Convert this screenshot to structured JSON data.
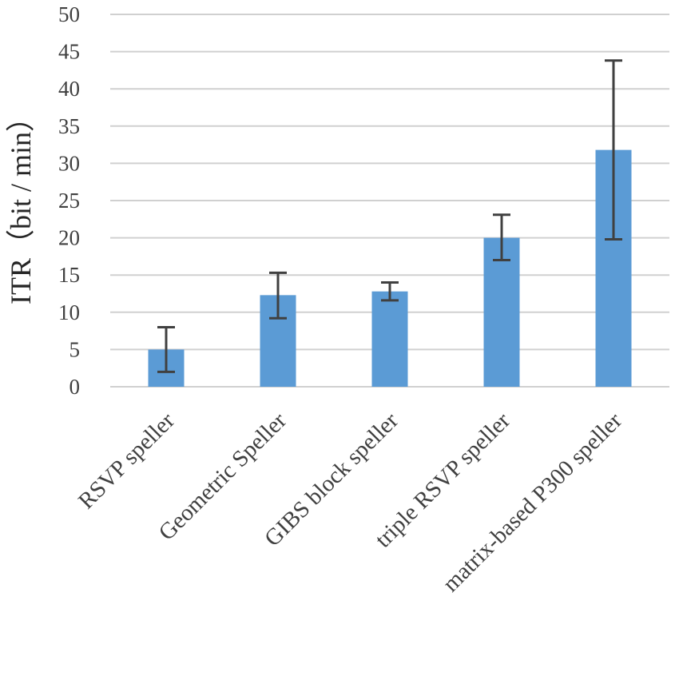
{
  "chart_data": {
    "type": "bar",
    "ylabel": "ITR（bit / min）",
    "xlabel": "",
    "ylim": [
      0,
      50
    ],
    "yticks": [
      0,
      5,
      10,
      15,
      20,
      25,
      30,
      35,
      40,
      45,
      50
    ],
    "grid": true,
    "categories": [
      "RSVP speller",
      "Geometric Speller",
      "GIBS block speller",
      "triple RSVP speller",
      "matrix-based P300 speller"
    ],
    "values": [
      5.0,
      12.3,
      12.8,
      20.0,
      31.8
    ],
    "error_low": [
      2.0,
      9.2,
      11.6,
      17.0,
      19.8
    ],
    "error_high": [
      8.0,
      15.3,
      14.0,
      23.1,
      43.8
    ],
    "colors": {
      "bar": "#5b9bd5",
      "error": "#404040",
      "grid": "#d0d0d0"
    }
  }
}
